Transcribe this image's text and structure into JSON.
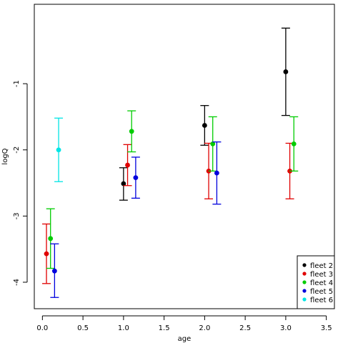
{
  "chart_data": {
    "type": "scatter",
    "xlabel": "age",
    "ylabel": "logQ",
    "xlim": [
      -0.1,
      3.6
    ],
    "ylim": [
      -4.4,
      0.2
    ],
    "x_ticks": [
      0.0,
      0.5,
      1.0,
      1.5,
      2.0,
      2.5,
      3.0,
      3.5
    ],
    "x_tick_labels": [
      "0.0",
      "0.5",
      "1.0",
      "1.5",
      "2.0",
      "2.5",
      "3.0",
      "3.5"
    ],
    "y_ticks": [
      -4,
      -3,
      -2,
      -1
    ],
    "y_tick_labels": [
      "-4",
      "-3",
      "-2",
      "-1"
    ],
    "grid": false,
    "legend_position": "bottom-right",
    "series": [
      {
        "name": "fleet 2",
        "color": "#000000",
        "points": [
          {
            "x": 1.0,
            "y": -2.51,
            "lo": -2.76,
            "hi": -2.27
          },
          {
            "x": 2.0,
            "y": -1.63,
            "lo": -1.93,
            "hi": -1.33
          },
          {
            "x": 3.0,
            "y": -0.82,
            "lo": -1.48,
            "hi": -0.16
          }
        ]
      },
      {
        "name": "fleet 3",
        "color": "#e00000",
        "points": [
          {
            "x": 0.05,
            "y": -3.57,
            "lo": -4.02,
            "hi": -3.12
          },
          {
            "x": 1.05,
            "y": -2.23,
            "lo": -2.54,
            "hi": -1.92
          },
          {
            "x": 2.05,
            "y": -2.32,
            "lo": -2.74,
            "hi": -1.9
          },
          {
            "x": 3.05,
            "y": -2.32,
            "lo": -2.74,
            "hi": -1.9
          }
        ]
      },
      {
        "name": "fleet 4",
        "color": "#00cc00",
        "points": [
          {
            "x": 0.1,
            "y": -3.34,
            "lo": -3.79,
            "hi": -2.89
          },
          {
            "x": 1.1,
            "y": -1.72,
            "lo": -2.03,
            "hi": -1.41
          },
          {
            "x": 2.1,
            "y": -1.91,
            "lo": -2.32,
            "hi": -1.5
          },
          {
            "x": 3.1,
            "y": -1.91,
            "lo": -2.32,
            "hi": -1.5
          }
        ]
      },
      {
        "name": "fleet 5",
        "color": "#0000dd",
        "points": [
          {
            "x": 0.15,
            "y": -3.83,
            "lo": -4.23,
            "hi": -3.42
          },
          {
            "x": 1.15,
            "y": -2.42,
            "lo": -2.73,
            "hi": -2.11
          },
          {
            "x": 2.15,
            "y": -2.35,
            "lo": -2.82,
            "hi": -1.88
          }
        ]
      },
      {
        "name": "fleet 6",
        "color": "#00e5e5",
        "points": [
          {
            "x": 0.2,
            "y": -2.0,
            "lo": -2.48,
            "hi": -1.52
          }
        ]
      }
    ]
  }
}
